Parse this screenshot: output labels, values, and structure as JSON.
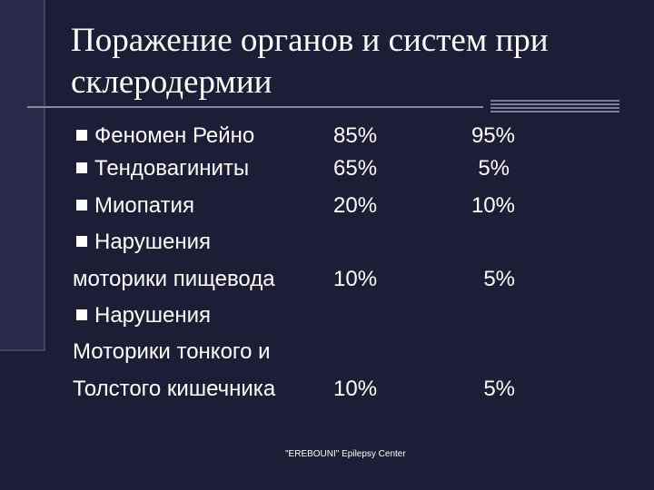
{
  "slide": {
    "title": "Поражение органов и систем при склеродермии",
    "footer": "\"EREBOUNI\" Epilepsy Center"
  },
  "items": [
    {
      "label": "Феномен Рейно",
      "v1": "85%",
      "v2": "95%"
    },
    {
      "label": "Тендовагиниты",
      "v1": "65%",
      "v2": "5%"
    },
    {
      "label": "Миопатия",
      "v1": "20%",
      "v2": "10%"
    },
    {
      "label_line1": "Нарушения",
      "label_line2": "моторики пищевода",
      "v1": "10%",
      "v2": "5%"
    },
    {
      "label_line1": "Нарушения",
      "label_line2": "Моторики тонкого и",
      "label_line3": "Толстого кишечника",
      "v1": "10%",
      "v2": "5%"
    }
  ]
}
